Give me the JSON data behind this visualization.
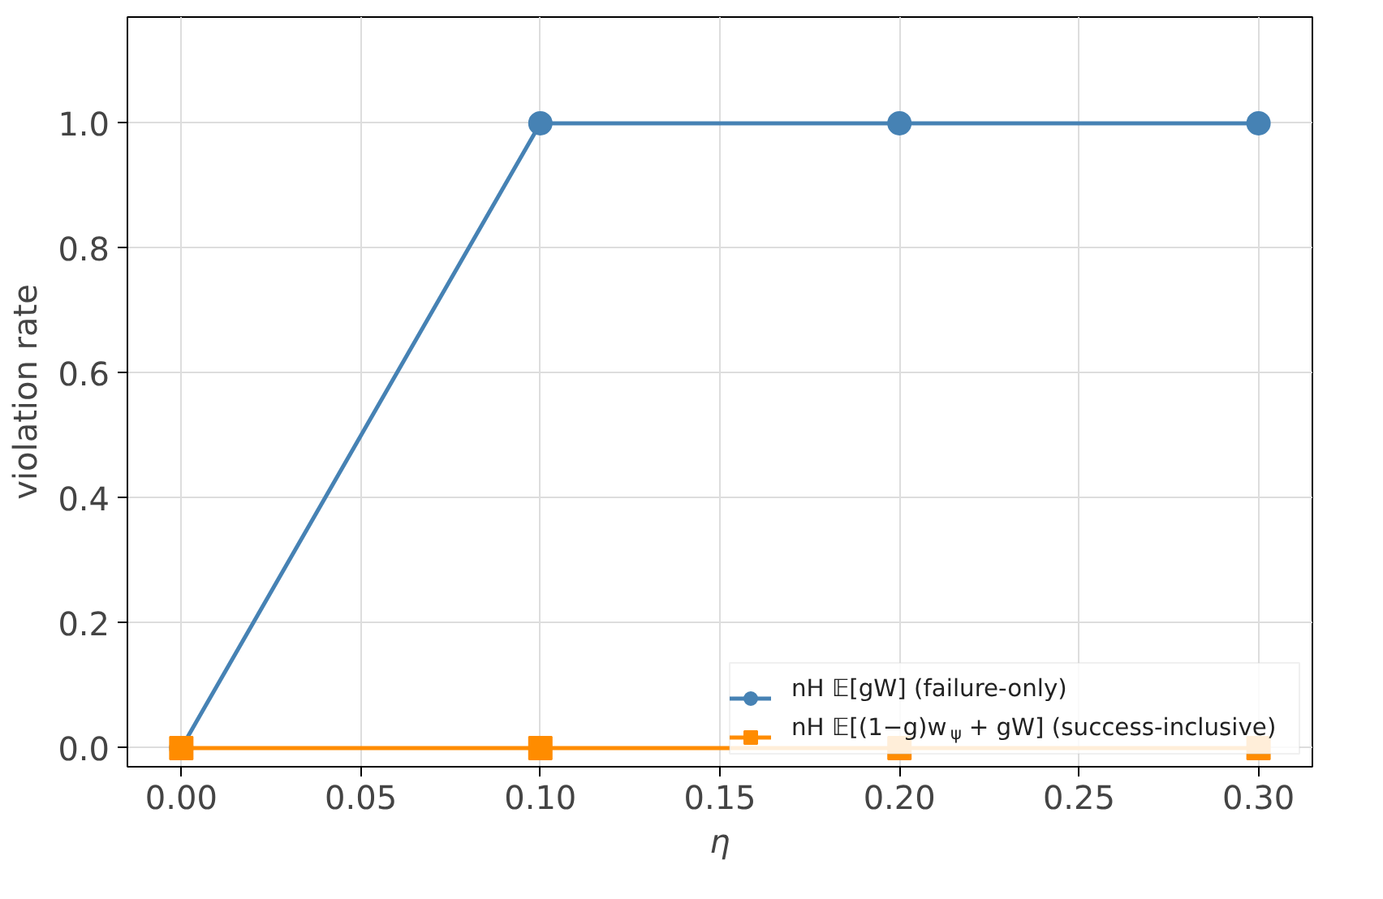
{
  "chart_data": {
    "type": "line",
    "xlabel": "η",
    "ylabel": "violation rate",
    "x": [
      0.0,
      0.1,
      0.2,
      0.3
    ],
    "series": [
      {
        "name": "nH 𝔼[gW] (failure-only)",
        "color": "#4682b4",
        "marker": "circle",
        "values": [
          0.0,
          1.0,
          1.0,
          1.0
        ]
      },
      {
        "name": "nH 𝔼[(1−g)w$_{ψ}$ + gW] (success-inclusive)",
        "color": "#ff8c00",
        "marker": "square",
        "values": [
          0.0,
          0.0,
          0.0,
          0.0
        ]
      }
    ],
    "xlim": [
      -0.015,
      0.315
    ],
    "xticks": [
      {
        "value": 0.0,
        "label": "0.00"
      },
      0.05,
      {
        "value": 0.1,
        "label": "0.10"
      },
      0.15,
      {
        "value": 0.2,
        "label": "0.20"
      },
      0.25,
      {
        "value": 0.3,
        "label": "0.30"
      }
    ],
    "ylim": [
      -0.03,
      1.17
    ],
    "yticks": [
      {
        "value": 0.0,
        "label": "0.0"
      },
      0.2,
      0.4,
      0.6,
      0.8,
      {
        "value": 1.0,
        "label": "1.0"
      }
    ],
    "grid": true,
    "legend": "bottom right",
    "line_style": "solid"
  }
}
